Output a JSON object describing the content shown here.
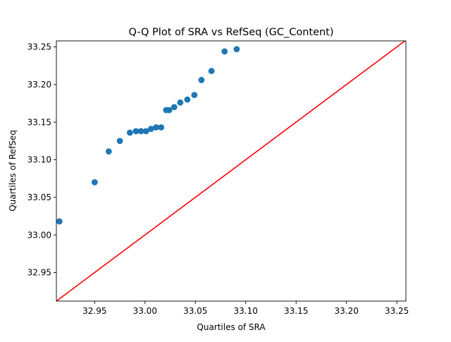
{
  "chart_data": {
    "type": "scatter",
    "title": "Q-Q Plot of SRA vs RefSeq (GC_Content)",
    "xlabel": "Quartiles of SRA",
    "ylabel": "Quartiles of RefSeq",
    "xlim": [
      32.912,
      33.259
    ],
    "ylim": [
      32.912,
      33.258
    ],
    "xticks": [
      "32.95",
      "33.00",
      "33.05",
      "33.10",
      "33.15",
      "33.20",
      "33.25"
    ],
    "yticks": [
      "32.95",
      "33.00",
      "33.05",
      "33.10",
      "33.15",
      "33.20",
      "33.25"
    ],
    "grid": false,
    "points": {
      "x": [
        32.915,
        32.95,
        32.964,
        32.975,
        32.985,
        32.991,
        32.996,
        33.001,
        33.006,
        33.011,
        33.016,
        33.021,
        33.024,
        33.029,
        33.035,
        33.042,
        33.049,
        33.056,
        33.066,
        33.079,
        33.091
      ],
      "y": [
        33.018,
        33.07,
        33.111,
        33.125,
        33.136,
        33.138,
        33.138,
        33.138,
        33.141,
        33.143,
        33.143,
        33.166,
        33.166,
        33.17,
        33.176,
        33.18,
        33.186,
        33.206,
        33.218,
        33.244,
        33.247
      ]
    },
    "reference_line": {
      "slope": 1,
      "intercept": 0
    },
    "colors": {
      "points": "#1f77b4",
      "reference_line": "#ff0000",
      "axes": "#000000"
    }
  }
}
